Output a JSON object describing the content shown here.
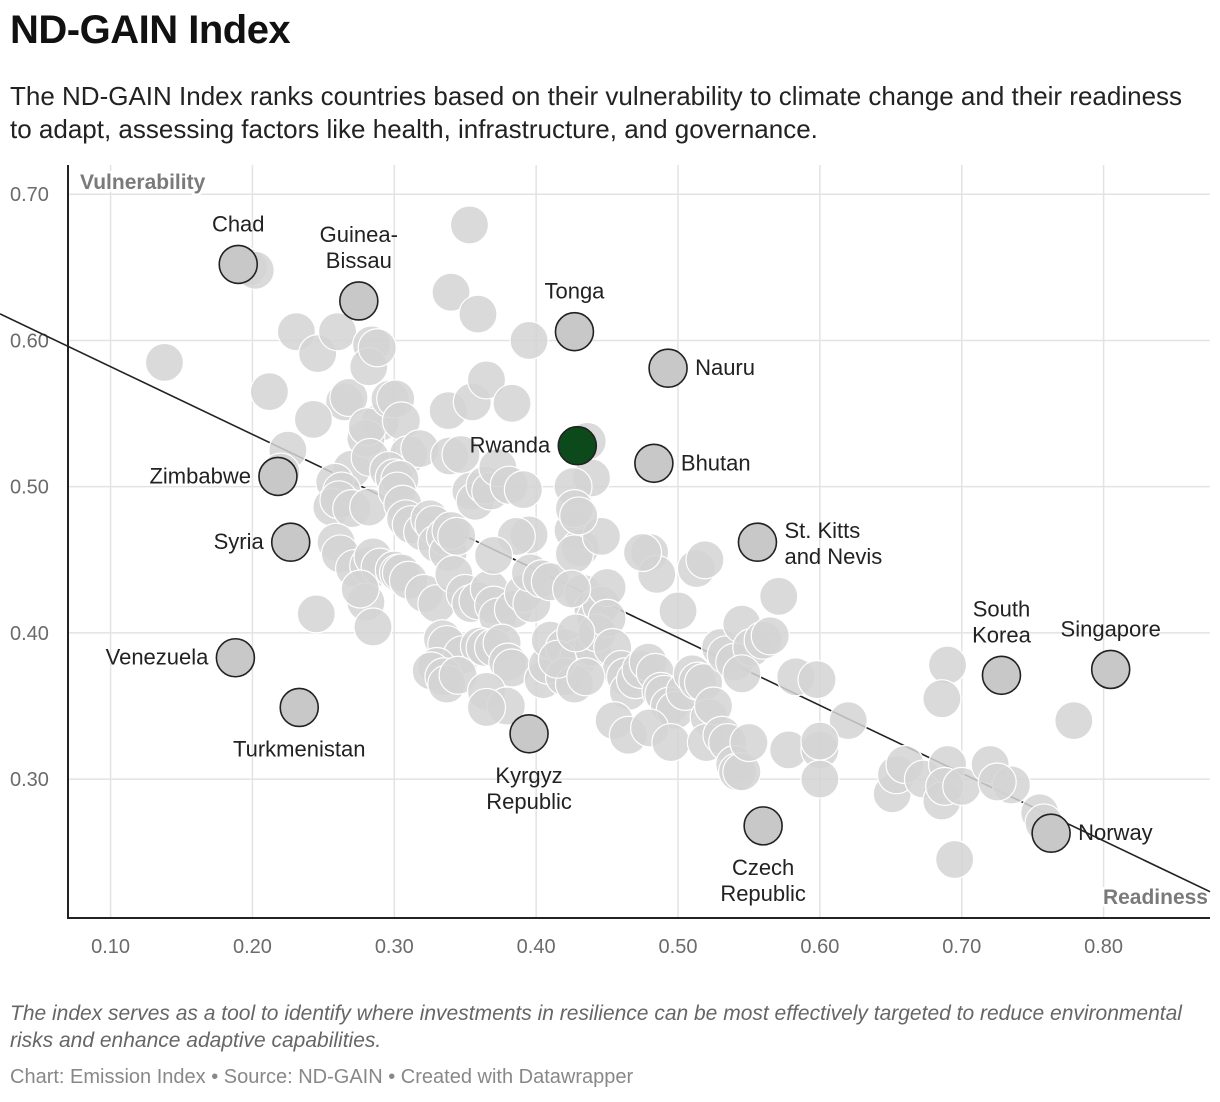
{
  "header": {
    "title": "ND-GAIN Index",
    "subtitle": "The ND-GAIN Index ranks countries based on their vulnerability to climate change and their readiness to adapt, assessing factors like health, infrastructure, and governance."
  },
  "chart_data": {
    "type": "scatter",
    "title": "ND-GAIN Index",
    "xlabel": "Readiness",
    "ylabel": "Vulnerability",
    "xlim": [
      0.07,
      0.875
    ],
    "ylim": [
      0.205,
      0.72
    ],
    "xticks": [
      0.1,
      0.2,
      0.3,
      0.4,
      0.5,
      0.6,
      0.7,
      0.8
    ],
    "yticks": [
      0.3,
      0.4,
      0.5,
      0.6,
      0.7
    ],
    "xtick_labels": [
      "0.10",
      "0.20",
      "0.30",
      "0.40",
      "0.50",
      "0.60",
      "0.70",
      "0.80"
    ],
    "ytick_labels": [
      "0.30",
      "0.40",
      "0.50",
      "0.60",
      "0.70"
    ],
    "grid": true,
    "trendline": {
      "x": [
        0.07,
        0.875
      ],
      "y": [
        0.596,
        0.223
      ]
    },
    "colors": {
      "background_point": "#d3d3d3",
      "labeled_point": "#c8c8c8",
      "highlight": "#0c4a1c",
      "outline": "#222222",
      "grid": "#e3e3e3"
    },
    "labeled_points": [
      {
        "name": "Chad",
        "x": 0.19,
        "y": 0.652,
        "label_lines": [
          "Chad"
        ],
        "pos": "top"
      },
      {
        "name": "Guinea-Bissau",
        "x": 0.275,
        "y": 0.627,
        "label_lines": [
          "Guinea-",
          "Bissau"
        ],
        "pos": "top"
      },
      {
        "name": "Tonga",
        "x": 0.427,
        "y": 0.606,
        "label_lines": [
          "Tonga"
        ],
        "pos": "top"
      },
      {
        "name": "Nauru",
        "x": 0.493,
        "y": 0.581,
        "label_lines": [
          "Nauru"
        ],
        "pos": "right"
      },
      {
        "name": "Rwanda",
        "x": 0.429,
        "y": 0.528,
        "label_lines": [
          "Rwanda"
        ],
        "pos": "left",
        "highlight": true
      },
      {
        "name": "Bhutan",
        "x": 0.483,
        "y": 0.516,
        "label_lines": [
          "Bhutan"
        ],
        "pos": "right"
      },
      {
        "name": "Zimbabwe",
        "x": 0.218,
        "y": 0.507,
        "label_lines": [
          "Zimbabwe"
        ],
        "pos": "left"
      },
      {
        "name": "Syria",
        "x": 0.227,
        "y": 0.462,
        "label_lines": [
          "Syria"
        ],
        "pos": "left"
      },
      {
        "name": "St. Kitts and Nevis",
        "x": 0.556,
        "y": 0.462,
        "label_lines": [
          "St. Kitts",
          "and Nevis"
        ],
        "pos": "right"
      },
      {
        "name": "South Korea",
        "x": 0.728,
        "y": 0.371,
        "label_lines": [
          "South",
          "Korea"
        ],
        "pos": "top"
      },
      {
        "name": "Singapore",
        "x": 0.805,
        "y": 0.375,
        "label_lines": [
          "Singapore"
        ],
        "pos": "top"
      },
      {
        "name": "Venezuela",
        "x": 0.188,
        "y": 0.383,
        "label_lines": [
          "Venezuela"
        ],
        "pos": "left"
      },
      {
        "name": "Turkmenistan",
        "x": 0.233,
        "y": 0.349,
        "label_lines": [
          "Turkmenistan"
        ],
        "pos": "bottom"
      },
      {
        "name": "Kyrgyz Republic",
        "x": 0.395,
        "y": 0.331,
        "label_lines": [
          "Kyrgyz",
          "Republic"
        ],
        "pos": "bottom"
      },
      {
        "name": "Czech Republic",
        "x": 0.56,
        "y": 0.268,
        "label_lines": [
          "Czech",
          "Republic"
        ],
        "pos": "bottom"
      },
      {
        "name": "Norway",
        "x": 0.763,
        "y": 0.263,
        "label_lines": [
          "Norway"
        ],
        "pos": "right"
      }
    ],
    "points": [
      [
        0.138,
        0.585
      ],
      [
        0.212,
        0.565
      ],
      [
        0.225,
        0.525
      ],
      [
        0.22,
        0.51
      ],
      [
        0.197,
        0.65
      ],
      [
        0.202,
        0.648
      ],
      [
        0.231,
        0.606
      ],
      [
        0.246,
        0.591
      ],
      [
        0.26,
        0.606
      ],
      [
        0.265,
        0.558
      ],
      [
        0.268,
        0.561
      ],
      [
        0.284,
        0.597
      ],
      [
        0.282,
        0.582
      ],
      [
        0.288,
        0.595
      ],
      [
        0.243,
        0.546
      ],
      [
        0.27,
        0.512
      ],
      [
        0.29,
        0.544
      ],
      [
        0.28,
        0.533
      ],
      [
        0.281,
        0.541
      ],
      [
        0.297,
        0.56
      ],
      [
        0.301,
        0.56
      ],
      [
        0.305,
        0.545
      ],
      [
        0.31,
        0.522
      ],
      [
        0.318,
        0.526
      ],
      [
        0.283,
        0.52
      ],
      [
        0.258,
        0.503
      ],
      [
        0.263,
        0.497
      ],
      [
        0.256,
        0.486
      ],
      [
        0.261,
        0.491
      ],
      [
        0.27,
        0.485
      ],
      [
        0.282,
        0.486
      ],
      [
        0.296,
        0.511
      ],
      [
        0.3,
        0.506
      ],
      [
        0.304,
        0.505
      ],
      [
        0.302,
        0.497
      ],
      [
        0.306,
        0.488
      ],
      [
        0.308,
        0.478
      ],
      [
        0.312,
        0.474
      ],
      [
        0.32,
        0.469
      ],
      [
        0.325,
        0.478
      ],
      [
        0.328,
        0.474
      ],
      [
        0.33,
        0.461
      ],
      [
        0.336,
        0.466
      ],
      [
        0.338,
        0.455
      ],
      [
        0.34,
        0.47
      ],
      [
        0.344,
        0.466
      ],
      [
        0.339,
        0.521
      ],
      [
        0.347,
        0.522
      ],
      [
        0.354,
        0.497
      ],
      [
        0.357,
        0.49
      ],
      [
        0.364,
        0.501
      ],
      [
        0.368,
        0.497
      ],
      [
        0.373,
        0.513
      ],
      [
        0.381,
        0.501
      ],
      [
        0.391,
        0.498
      ],
      [
        0.338,
        0.552
      ],
      [
        0.355,
        0.558
      ],
      [
        0.365,
        0.573
      ],
      [
        0.383,
        0.557
      ],
      [
        0.34,
        0.633
      ],
      [
        0.359,
        0.618
      ],
      [
        0.353,
        0.679
      ],
      [
        0.395,
        0.6
      ],
      [
        0.259,
        0.462
      ],
      [
        0.262,
        0.454
      ],
      [
        0.272,
        0.444
      ],
      [
        0.282,
        0.446
      ],
      [
        0.285,
        0.452
      ],
      [
        0.29,
        0.445
      ],
      [
        0.3,
        0.443
      ],
      [
        0.303,
        0.441
      ],
      [
        0.305,
        0.441
      ],
      [
        0.31,
        0.436
      ],
      [
        0.321,
        0.427
      ],
      [
        0.33,
        0.42
      ],
      [
        0.28,
        0.421
      ],
      [
        0.276,
        0.43
      ],
      [
        0.245,
        0.413
      ],
      [
        0.285,
        0.404
      ],
      [
        0.342,
        0.44
      ],
      [
        0.35,
        0.427
      ],
      [
        0.354,
        0.42
      ],
      [
        0.359,
        0.422
      ],
      [
        0.367,
        0.43
      ],
      [
        0.37,
        0.419
      ],
      [
        0.373,
        0.411
      ],
      [
        0.384,
        0.416
      ],
      [
        0.391,
        0.427
      ],
      [
        0.397,
        0.42
      ],
      [
        0.396,
        0.441
      ],
      [
        0.404,
        0.437
      ],
      [
        0.41,
        0.435
      ],
      [
        0.395,
        0.467
      ],
      [
        0.386,
        0.466
      ],
      [
        0.37,
        0.453
      ],
      [
        0.426,
        0.47
      ],
      [
        0.431,
        0.458
      ],
      [
        0.427,
        0.454
      ],
      [
        0.433,
        0.427
      ],
      [
        0.44,
        0.416
      ],
      [
        0.442,
        0.41
      ],
      [
        0.446,
        0.419
      ],
      [
        0.45,
        0.431
      ],
      [
        0.446,
        0.466
      ],
      [
        0.436,
        0.531
      ],
      [
        0.439,
        0.506
      ],
      [
        0.426,
        0.5
      ],
      [
        0.427,
        0.485
      ],
      [
        0.43,
        0.48
      ],
      [
        0.334,
        0.396
      ],
      [
        0.337,
        0.392
      ],
      [
        0.348,
        0.385
      ],
      [
        0.36,
        0.391
      ],
      [
        0.364,
        0.39
      ],
      [
        0.37,
        0.39
      ],
      [
        0.376,
        0.393
      ],
      [
        0.38,
        0.38
      ],
      [
        0.383,
        0.376
      ],
      [
        0.33,
        0.377
      ],
      [
        0.326,
        0.374
      ],
      [
        0.335,
        0.37
      ],
      [
        0.337,
        0.365
      ],
      [
        0.345,
        0.371
      ],
      [
        0.365,
        0.36
      ],
      [
        0.379,
        0.35
      ],
      [
        0.365,
        0.349
      ],
      [
        0.405,
        0.368
      ],
      [
        0.408,
        0.378
      ],
      [
        0.41,
        0.395
      ],
      [
        0.42,
        0.39
      ],
      [
        0.43,
        0.383
      ],
      [
        0.44,
        0.39
      ],
      [
        0.443,
        0.4
      ],
      [
        0.45,
        0.41
      ],
      [
        0.454,
        0.39
      ],
      [
        0.46,
        0.375
      ],
      [
        0.463,
        0.37
      ],
      [
        0.465,
        0.36
      ],
      [
        0.47,
        0.368
      ],
      [
        0.474,
        0.375
      ],
      [
        0.479,
        0.38
      ],
      [
        0.484,
        0.373
      ],
      [
        0.488,
        0.36
      ],
      [
        0.49,
        0.358
      ],
      [
        0.494,
        0.35
      ],
      [
        0.498,
        0.347
      ],
      [
        0.505,
        0.36
      ],
      [
        0.51,
        0.372
      ],
      [
        0.514,
        0.367
      ],
      [
        0.518,
        0.366
      ],
      [
        0.522,
        0.342
      ],
      [
        0.525,
        0.35
      ],
      [
        0.53,
        0.39
      ],
      [
        0.534,
        0.385
      ],
      [
        0.54,
        0.38
      ],
      [
        0.545,
        0.406
      ],
      [
        0.552,
        0.39
      ],
      [
        0.56,
        0.395
      ],
      [
        0.565,
        0.398
      ],
      [
        0.571,
        0.425
      ],
      [
        0.545,
        0.372
      ],
      [
        0.513,
        0.444
      ],
      [
        0.519,
        0.45
      ],
      [
        0.5,
        0.415
      ],
      [
        0.48,
        0.455
      ],
      [
        0.485,
        0.44
      ],
      [
        0.475,
        0.455
      ],
      [
        0.425,
        0.43
      ],
      [
        0.42,
        0.37
      ],
      [
        0.427,
        0.365
      ],
      [
        0.415,
        0.382
      ],
      [
        0.428,
        0.4
      ],
      [
        0.435,
        0.37
      ],
      [
        0.455,
        0.34
      ],
      [
        0.465,
        0.33
      ],
      [
        0.48,
        0.335
      ],
      [
        0.495,
        0.325
      ],
      [
        0.52,
        0.325
      ],
      [
        0.531,
        0.33
      ],
      [
        0.535,
        0.325
      ],
      [
        0.54,
        0.31
      ],
      [
        0.542,
        0.305
      ],
      [
        0.545,
        0.305
      ],
      [
        0.55,
        0.325
      ],
      [
        0.578,
        0.32
      ],
      [
        0.6,
        0.32
      ],
      [
        0.6,
        0.3
      ],
      [
        0.583,
        0.37
      ],
      [
        0.598,
        0.368
      ],
      [
        0.62,
        0.34
      ],
      [
        0.6,
        0.326
      ],
      [
        0.651,
        0.29
      ],
      [
        0.654,
        0.303
      ],
      [
        0.66,
        0.31
      ],
      [
        0.673,
        0.3
      ],
      [
        0.686,
        0.285
      ],
      [
        0.69,
        0.31
      ],
      [
        0.688,
        0.295
      ],
      [
        0.7,
        0.295
      ],
      [
        0.72,
        0.31
      ],
      [
        0.735,
        0.296
      ],
      [
        0.725,
        0.298
      ],
      [
        0.69,
        0.378
      ],
      [
        0.686,
        0.355
      ],
      [
        0.755,
        0.277
      ],
      [
        0.758,
        0.27
      ],
      [
        0.779,
        0.34
      ],
      [
        0.695,
        0.245
      ]
    ]
  },
  "notes": "The index serves as a tool to identify where investments in resilience can be most effectively targeted to reduce environmental risks and enhance adaptive capabilities.",
  "footer": "Chart: Emission Index • Source: ND-GAIN • Created with Datawrapper"
}
